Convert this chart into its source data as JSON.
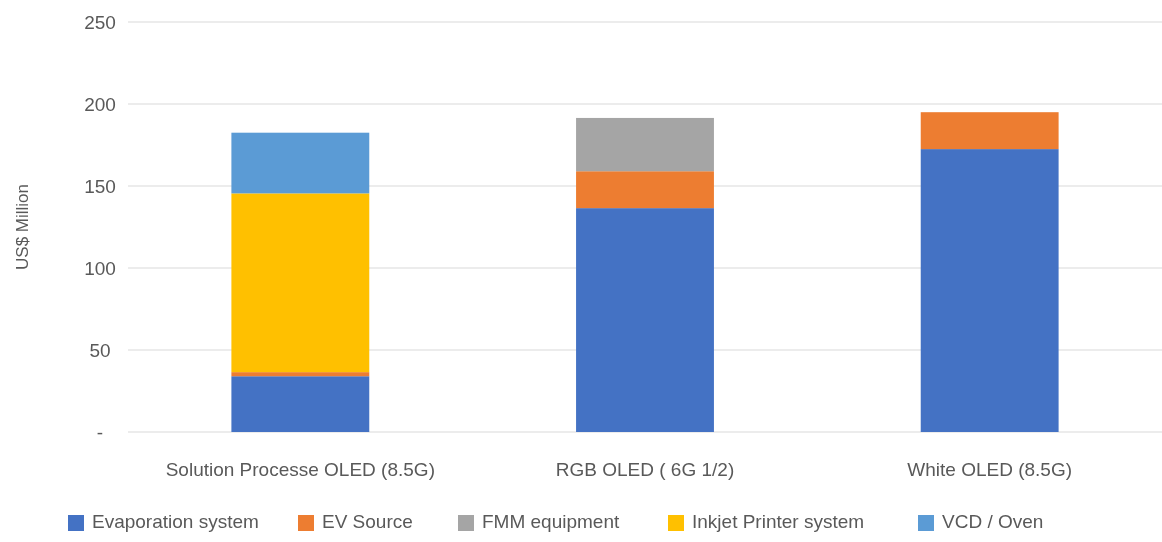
{
  "chart_data": {
    "type": "bar",
    "stacked": true,
    "ylabel": "US$ Million",
    "categories": [
      "Solution Processe OLED (8.5G)",
      "RGB OLED ( 6G 1/2)",
      "White OLED (8.5G)"
    ],
    "series": [
      {
        "name": "Evaporation system",
        "color": "#4472c4",
        "values": [
          34,
          136.5,
          172.5
        ]
      },
      {
        "name": "EV Source",
        "color": "#ed7d31",
        "values": [
          2.5,
          22.5,
          22.5
        ]
      },
      {
        "name": "FMM equipment",
        "color": "#a5a5a5",
        "values": [
          0,
          32.5,
          0
        ]
      },
      {
        "name": "Inkjet Printer system",
        "color": "#ffc000",
        "values": [
          109,
          0,
          0
        ]
      },
      {
        "name": "VCD / Oven",
        "color": "#5b9bd5",
        "values": [
          37,
          0,
          0
        ]
      }
    ],
    "ylim": [
      0,
      250
    ],
    "yticks": [
      {
        "value": 0,
        "label": "-"
      },
      50,
      100,
      150,
      200,
      250
    ],
    "grid": "y",
    "legend": "bottom"
  }
}
